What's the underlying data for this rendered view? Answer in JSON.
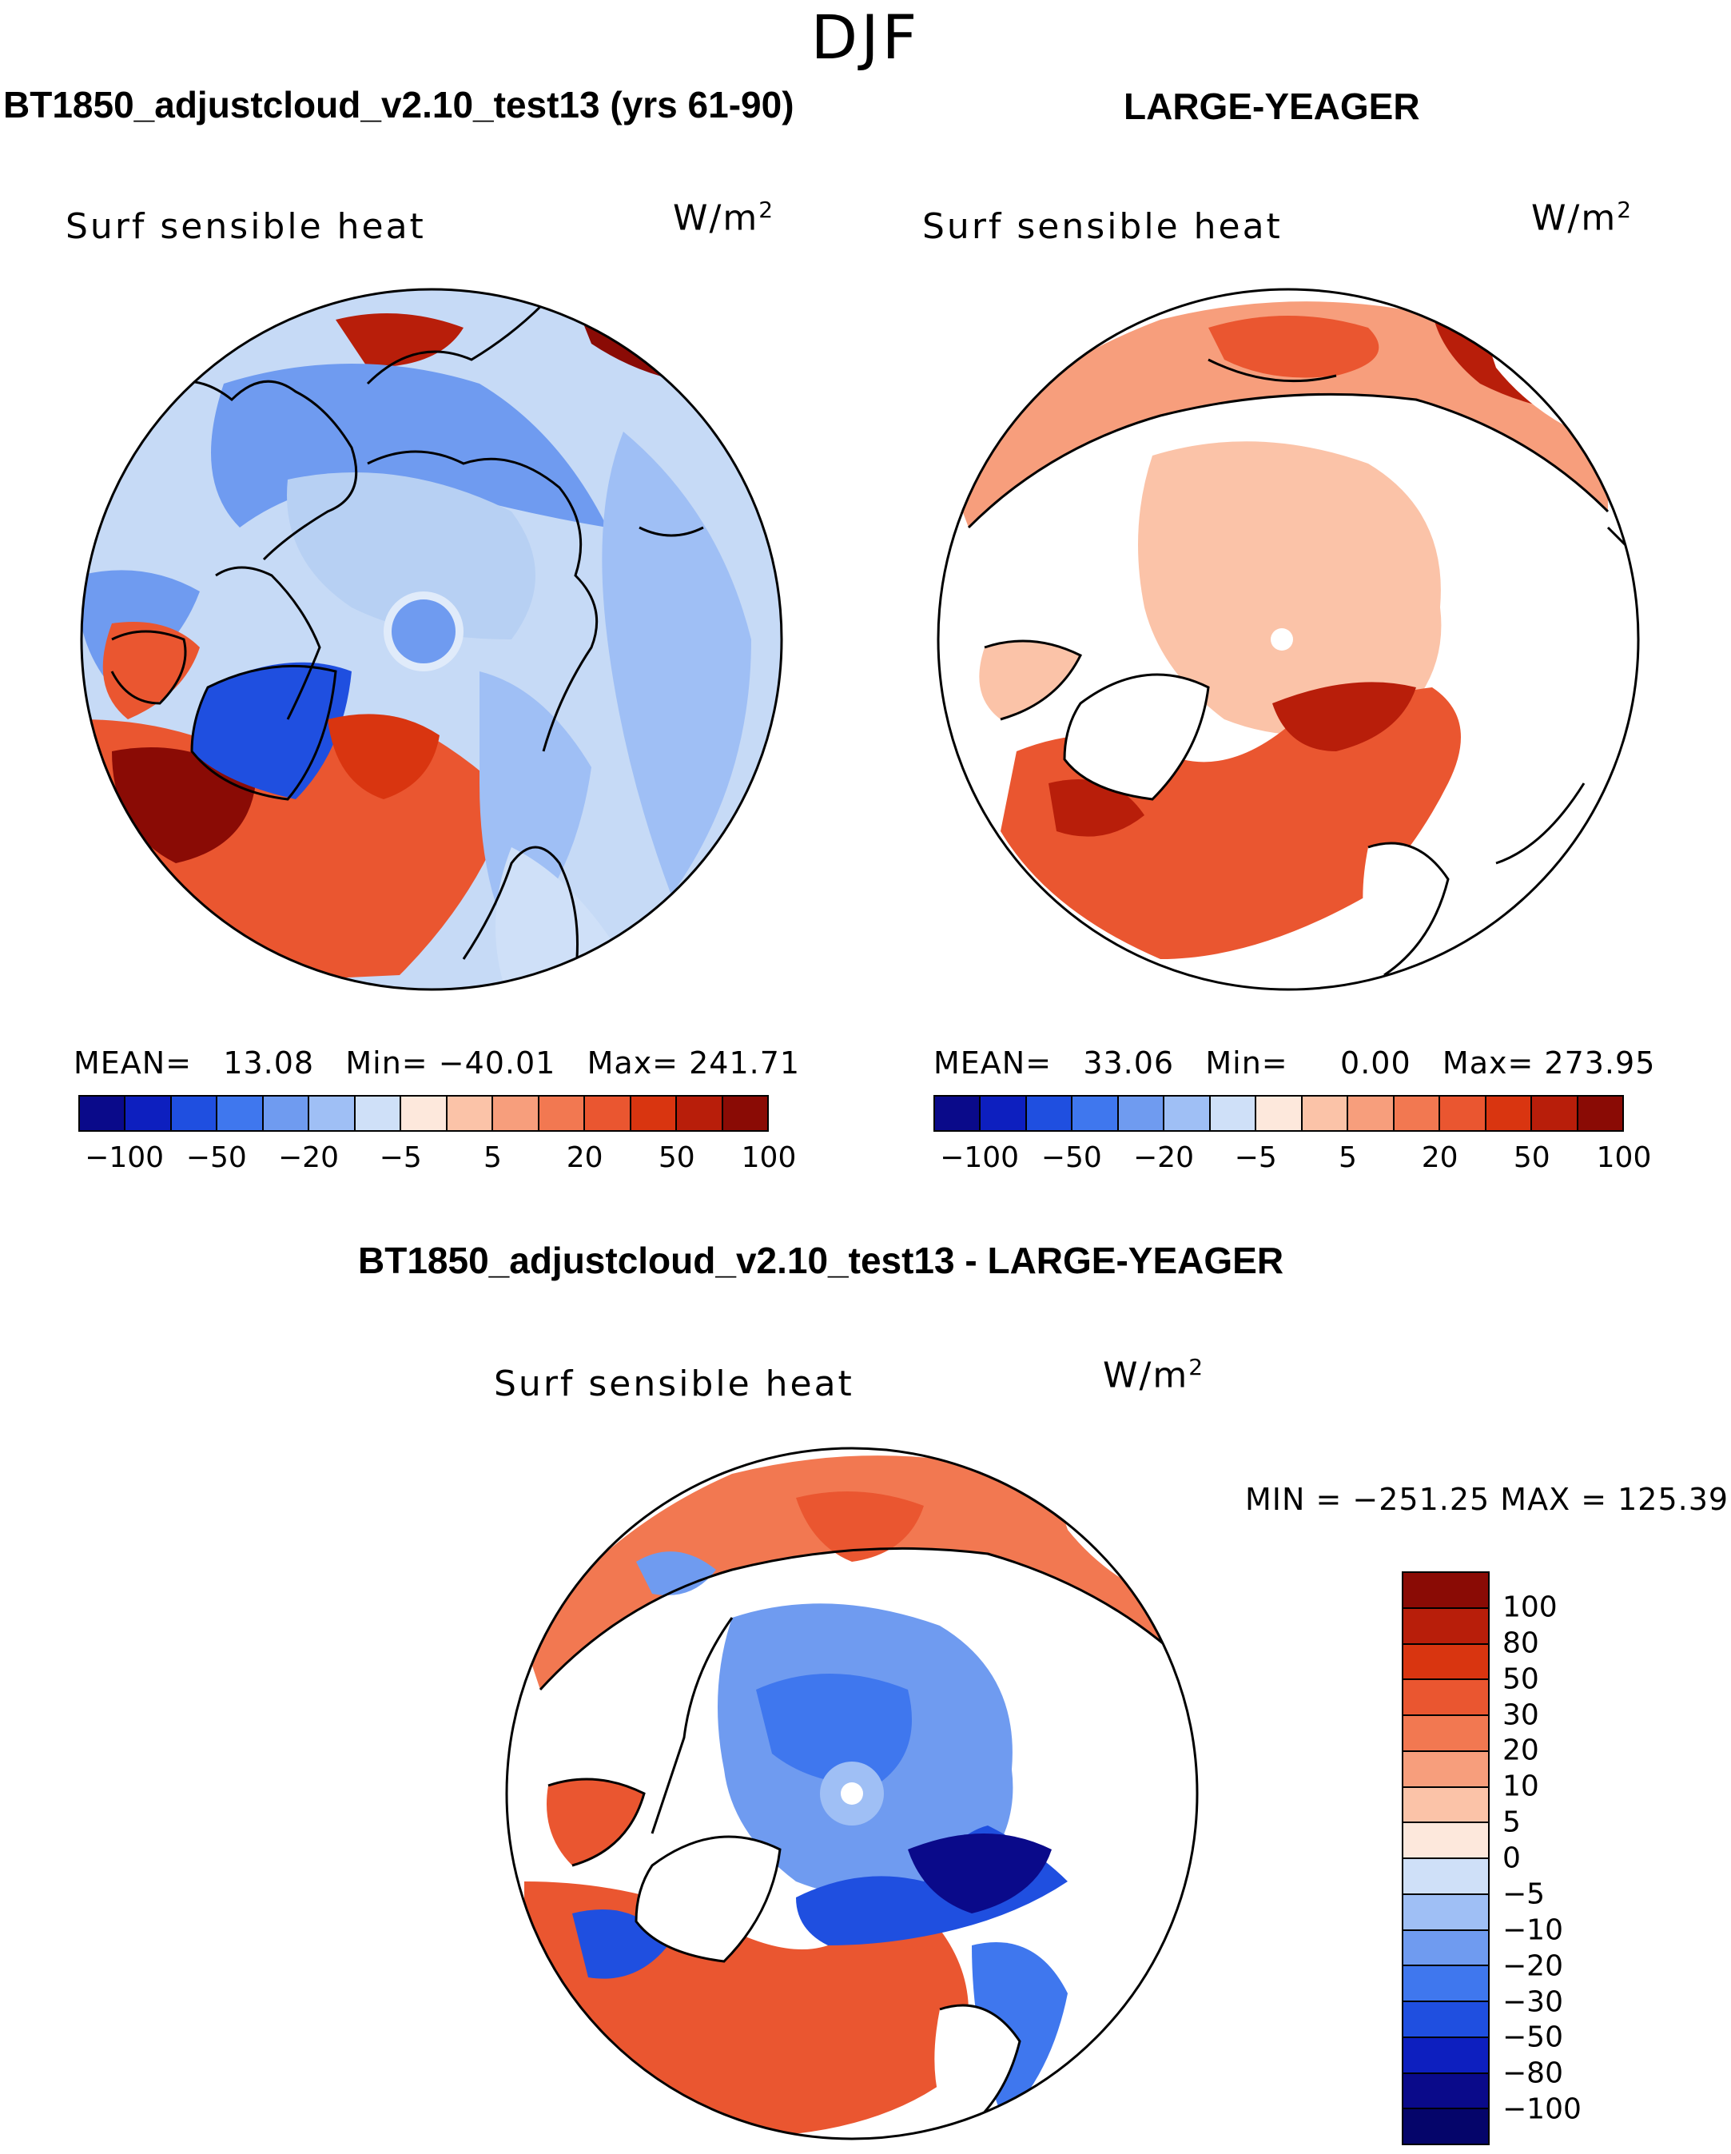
{
  "title": "DJF",
  "panels": [
    {
      "id": "model",
      "header": "BT1850_adjustcloud_v2.10_test13 (yrs 61-90)",
      "variable": "Surf sensible heat",
      "units_base": "W/m",
      "units_exp": "2",
      "stats": {
        "mean_label": "MEAN=",
        "mean": "13.08",
        "min_label": "Min=",
        "min": "−40.01",
        "max_label": "Max=",
        "max": "241.71"
      },
      "palette": "warm_ocean_cool_ice"
    },
    {
      "id": "obs",
      "header": "LARGE-YEAGER",
      "variable": "Surf sensible heat",
      "units_base": "W/m",
      "units_exp": "2",
      "stats": {
        "mean_label": "MEAN=",
        "mean": "33.06",
        "min_label": "Min=",
        "min": "0.00",
        "max_label": "Max=",
        "max": "273.95"
      },
      "palette": "warm_ocean_land_masked"
    },
    {
      "id": "diff",
      "header": "BT1850_adjustcloud_v2.10_test13 - LARGE-YEAGER",
      "variable": "Surf sensible heat",
      "units_base": "W/m",
      "units_exp": "2",
      "minmax_text": "MIN = −251.25 MAX = 125.39",
      "palette": "difference"
    }
  ],
  "colorbar_top": {
    "colors": [
      "#0a0a8a",
      "#0d1fbf",
      "#1f4fe0",
      "#3f77ee",
      "#6f9bf0",
      "#9fbff5",
      "#cfe0f8",
      "#fde8dc",
      "#fbc3a8",
      "#f79e7c",
      "#f27851",
      "#ea5630",
      "#d93510",
      "#b81e0a",
      "#8a0b05"
    ],
    "tick_labels": [
      "−100",
      "−50",
      "−20",
      "−5",
      "5",
      "20",
      "50",
      "100"
    ]
  },
  "colorbar_diff": {
    "colors": [
      "#8a0b05",
      "#b81e0a",
      "#d93510",
      "#ea5630",
      "#f27851",
      "#f79e7c",
      "#fbc3a8",
      "#fde8dc",
      "#cfe0f8",
      "#9fbff5",
      "#6f9bf0",
      "#3f77ee",
      "#1f4fe0",
      "#0d1fbf",
      "#0a0a8a",
      "#05056a"
    ],
    "tick_labels": [
      "100",
      "80",
      "50",
      "30",
      "20",
      "10",
      "5",
      "0",
      "−5",
      "−10",
      "−20",
      "−30",
      "−50",
      "−80",
      "−100"
    ]
  }
}
